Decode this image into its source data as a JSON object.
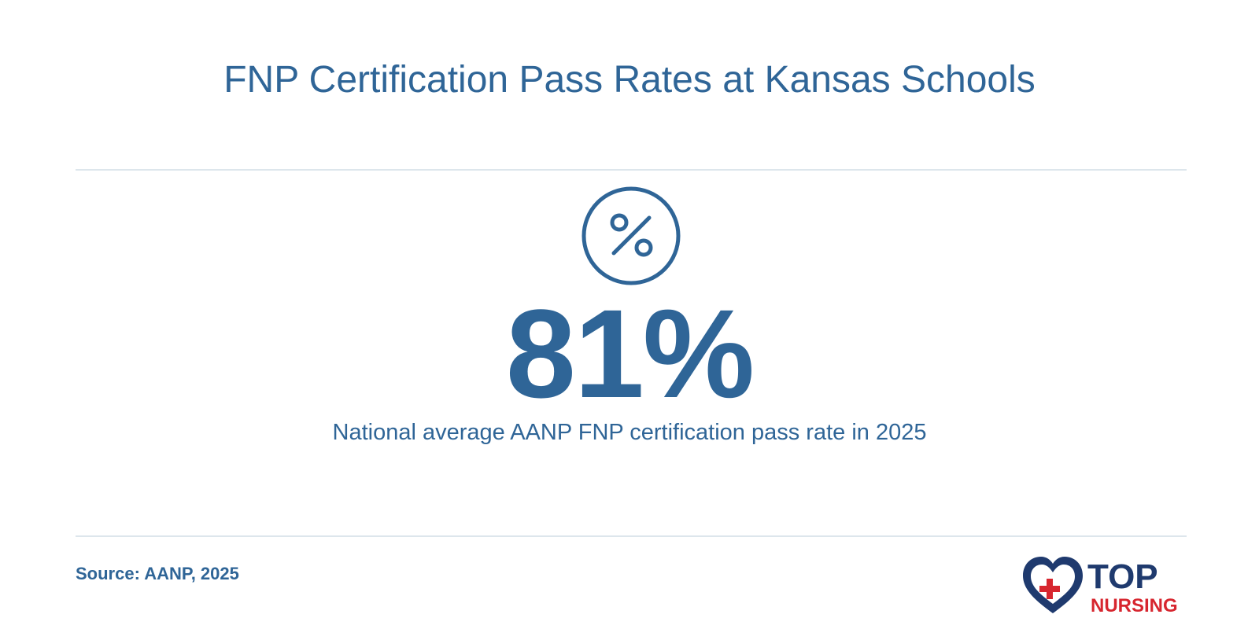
{
  "title": "FNP Certification Pass Rates at Kansas Schools",
  "stat": {
    "value": "81%",
    "icon": "percent-icon",
    "caption": "National average AANP FNP certification pass rate in 2025"
  },
  "source": "Source: AANP, 2025",
  "logo": {
    "line1": "TOP",
    "line2": "NURSING"
  },
  "colors": {
    "primary": "#2f6597",
    "divider": "#dde6ec",
    "logo_navy": "#1f3a6e",
    "logo_red": "#d7262f"
  }
}
